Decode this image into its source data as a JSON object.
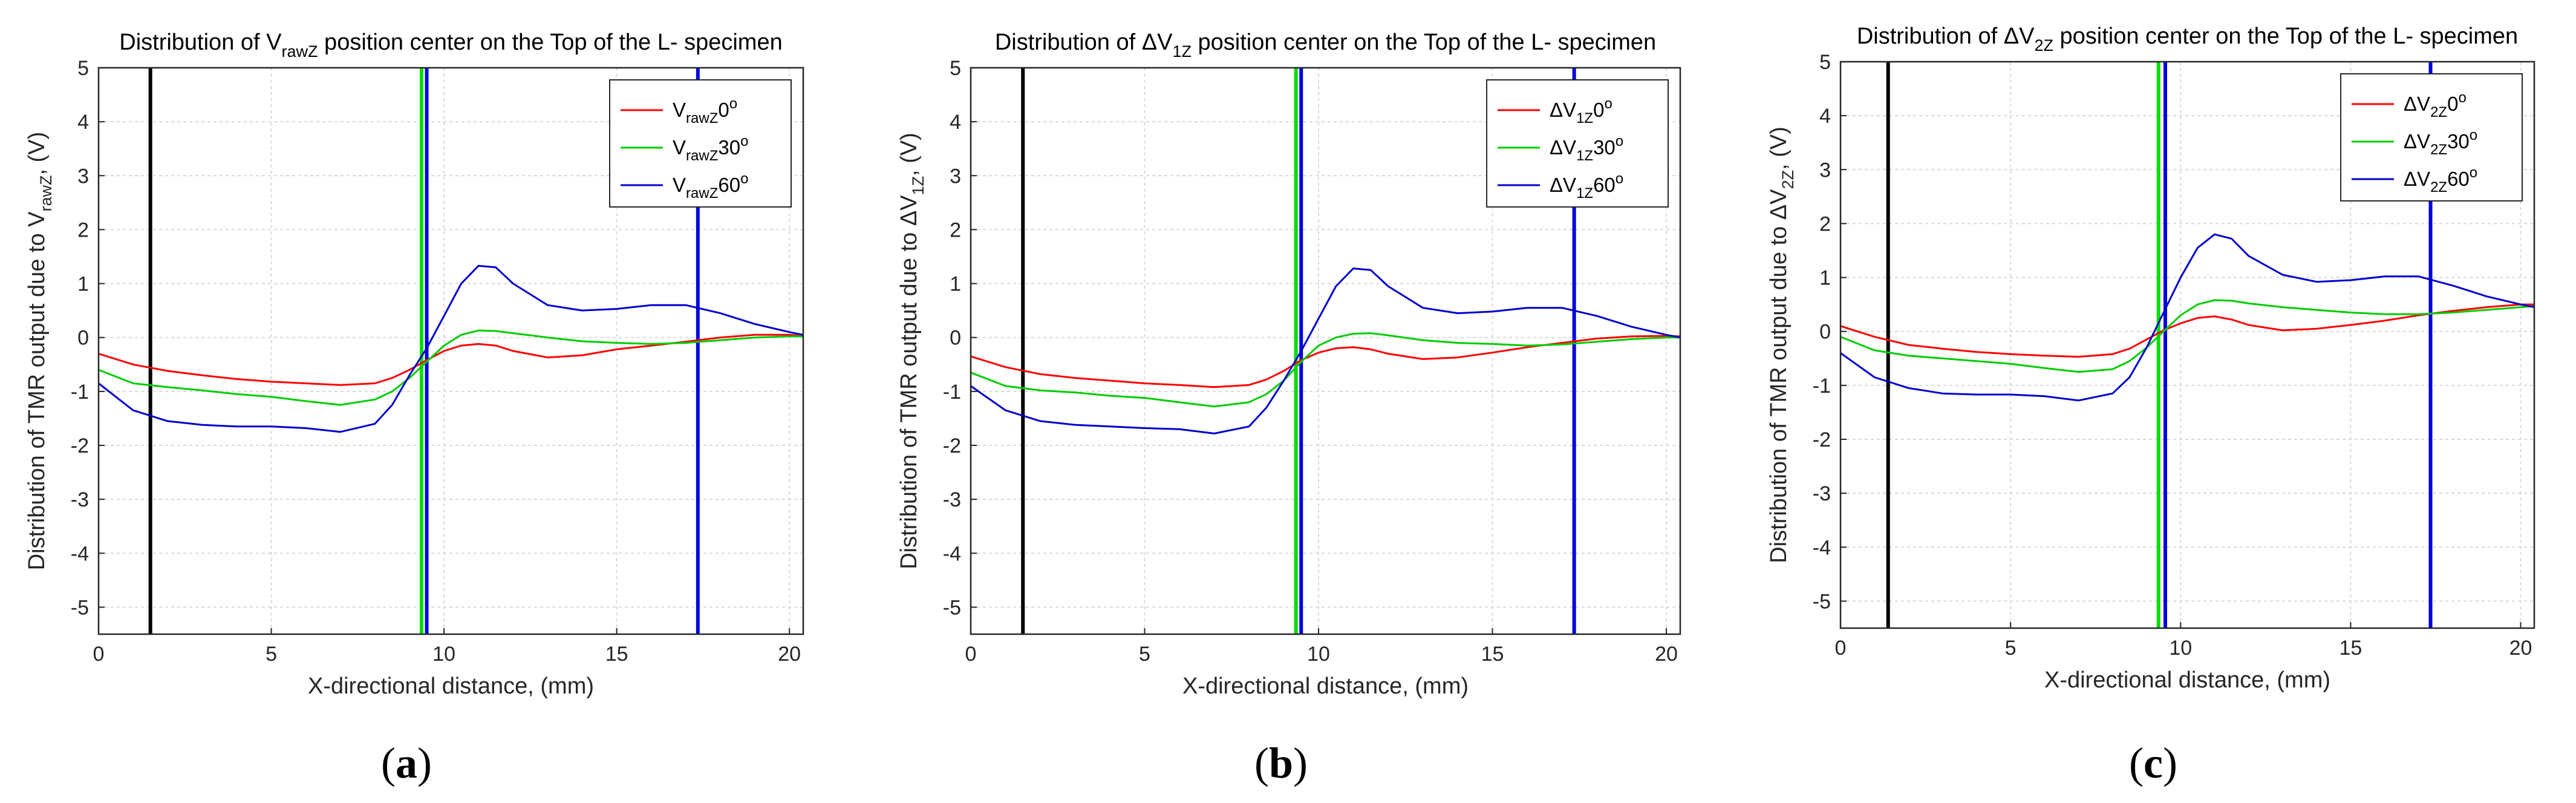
{
  "colors": {
    "series0": "#ff0000",
    "series30": "#00cc00",
    "series60": "#0000cc",
    "black_line": "#000000",
    "green_line": "#00dd00",
    "blue_line": "#0000dd",
    "grid": "#d9d9d9"
  },
  "panels": [
    {
      "title_pre": "Distribution of ",
      "title_sym": "V",
      "title_sub": "rawZ",
      "title_post": " position center on the Top of the L- specimen",
      "ylabel_pre": "Distribution of TMR output due to ",
      "ylabel_sym": "V",
      "ylabel_sub": "rawZ",
      "ylabel_post": ", (V)",
      "xlabel": "X-directional distance, (mm)",
      "caption_bold": "a",
      "legend": [
        {
          "sym": "V",
          "sub": "rawZ",
          "angle": "0",
          "sup": "o"
        },
        {
          "sym": "V",
          "sub": "rawZ",
          "angle": "30",
          "sup": "o"
        },
        {
          "sym": "V",
          "sub": "rawZ",
          "angle": "60",
          "sup": "o"
        }
      ]
    },
    {
      "title_pre": "Distribution of ",
      "title_sym": "ΔV",
      "title_sub": "1Z",
      "title_post": " position center on the Top of the L- specimen",
      "ylabel_pre": "Distribution of TMR output due to ",
      "ylabel_sym": "ΔV",
      "ylabel_sub": "1Z",
      "ylabel_post": ", (V)",
      "xlabel": "X-directional distance, (mm)",
      "caption_bold": "b",
      "legend": [
        {
          "sym": "ΔV",
          "sub": "1Z",
          "angle": "0",
          "sup": "o"
        },
        {
          "sym": "ΔV",
          "sub": "1Z",
          "angle": "30",
          "sup": "o"
        },
        {
          "sym": "ΔV",
          "sub": "1Z",
          "angle": "60",
          "sup": "o"
        }
      ]
    },
    {
      "title_pre": "Distribution of ",
      "title_sym": "ΔV",
      "title_sub": "2Z",
      "title_post": " position center on the Top of the L- specimen",
      "ylabel_pre": "Distribution of TMR output due to ",
      "ylabel_sym": "ΔV",
      "ylabel_sub": "2Z",
      "ylabel_post": ", (V)",
      "xlabel": "X-directional distance, (mm)",
      "caption_bold": "c",
      "legend": [
        {
          "sym": "ΔV",
          "sub": "2Z",
          "angle": "0",
          "sup": "o"
        },
        {
          "sym": "ΔV",
          "sub": "2Z",
          "angle": "30",
          "sup": "o"
        },
        {
          "sym": "ΔV",
          "sub": "2Z",
          "angle": "60",
          "sup": "o"
        }
      ]
    }
  ],
  "chart_data": [
    {
      "type": "line",
      "xlim": [
        0,
        20.4
      ],
      "ylim": [
        -5.5,
        5
      ],
      "xticks": [
        0,
        5,
        10,
        15,
        20
      ],
      "yticks": [
        5,
        4,
        3,
        2,
        1,
        0,
        -1,
        -2,
        -3,
        -4,
        -5
      ],
      "grid": true,
      "legend_position": "top-right",
      "vlines": [
        {
          "x": 1.5,
          "color": "black"
        },
        {
          "x": 9.35,
          "color": "green"
        },
        {
          "x": 9.5,
          "color": "blue"
        },
        {
          "x": 17.35,
          "color": "blue"
        }
      ],
      "x": [
        0,
        1,
        2,
        3,
        4,
        5,
        6,
        7,
        8,
        8.5,
        9,
        9.5,
        10,
        10.5,
        11,
        11.5,
        12,
        13,
        14,
        15,
        16,
        17,
        18,
        19,
        20,
        20.4
      ],
      "series": [
        {
          "name": "0°",
          "values": [
            -0.3,
            -0.5,
            -0.62,
            -0.7,
            -0.77,
            -0.82,
            -0.85,
            -0.88,
            -0.85,
            -0.75,
            -0.6,
            -0.42,
            -0.25,
            -0.15,
            -0.12,
            -0.15,
            -0.25,
            -0.37,
            -0.33,
            -0.22,
            -0.15,
            -0.08,
            0,
            0.05,
            0.05,
            0.03
          ]
        },
        {
          "name": "30°",
          "values": [
            -0.6,
            -0.85,
            -0.92,
            -0.98,
            -1.05,
            -1.1,
            -1.18,
            -1.25,
            -1.15,
            -1.0,
            -0.75,
            -0.45,
            -0.15,
            0.05,
            0.13,
            0.12,
            0.08,
            0.0,
            -0.07,
            -0.1,
            -0.12,
            -0.1,
            -0.05,
            0,
            0.02,
            0.02
          ]
        },
        {
          "name": "60°",
          "values": [
            -0.85,
            -1.35,
            -1.55,
            -1.62,
            -1.65,
            -1.65,
            -1.68,
            -1.75,
            -1.6,
            -1.25,
            -0.7,
            -0.2,
            0.4,
            1.0,
            1.33,
            1.3,
            1.0,
            0.6,
            0.5,
            0.53,
            0.6,
            0.6,
            0.45,
            0.25,
            0.1,
            0.05
          ]
        }
      ]
    },
    {
      "type": "line",
      "xlim": [
        0,
        20.4
      ],
      "ylim": [
        -5.5,
        5
      ],
      "xticks": [
        0,
        5,
        10,
        15,
        20
      ],
      "yticks": [
        5,
        4,
        3,
        2,
        1,
        0,
        -1,
        -2,
        -3,
        -4,
        -5
      ],
      "grid": true,
      "legend_position": "top-right",
      "vlines": [
        {
          "x": 1.5,
          "color": "black"
        },
        {
          "x": 9.35,
          "color": "green"
        },
        {
          "x": 9.5,
          "color": "blue"
        },
        {
          "x": 17.35,
          "color": "blue"
        }
      ],
      "x": [
        0,
        1,
        2,
        3,
        4,
        5,
        6,
        7,
        8,
        8.5,
        9,
        9.5,
        10,
        10.5,
        11,
        11.5,
        12,
        13,
        14,
        15,
        16,
        17,
        18,
        19,
        20,
        20.4
      ],
      "series": [
        {
          "name": "0°",
          "values": [
            -0.35,
            -0.55,
            -0.68,
            -0.75,
            -0.8,
            -0.85,
            -0.88,
            -0.92,
            -0.88,
            -0.78,
            -0.62,
            -0.42,
            -0.28,
            -0.2,
            -0.18,
            -0.22,
            -0.3,
            -0.4,
            -0.37,
            -0.28,
            -0.18,
            -0.1,
            -0.02,
            0.02,
            0.03,
            0.02
          ]
        },
        {
          "name": "30°",
          "values": [
            -0.65,
            -0.9,
            -0.98,
            -1.02,
            -1.08,
            -1.12,
            -1.2,
            -1.28,
            -1.2,
            -1.05,
            -0.8,
            -0.45,
            -0.15,
            0.0,
            0.07,
            0.08,
            0.04,
            -0.05,
            -0.1,
            -0.12,
            -0.15,
            -0.13,
            -0.08,
            -0.03,
            0,
            0.0
          ]
        },
        {
          "name": "60°",
          "values": [
            -0.9,
            -1.35,
            -1.55,
            -1.62,
            -1.65,
            -1.68,
            -1.7,
            -1.78,
            -1.65,
            -1.3,
            -0.8,
            -0.25,
            0.35,
            0.95,
            1.28,
            1.25,
            0.95,
            0.55,
            0.45,
            0.48,
            0.55,
            0.55,
            0.4,
            0.2,
            0.05,
            0.0
          ]
        }
      ]
    },
    {
      "type": "line",
      "xlim": [
        0,
        20.4
      ],
      "ylim": [
        -5.5,
        5
      ],
      "xticks": [
        0,
        5,
        10,
        15,
        20
      ],
      "yticks": [
        5,
        4,
        3,
        2,
        1,
        0,
        -1,
        -2,
        -3,
        -4,
        -5
      ],
      "grid": true,
      "legend_position": "top-right",
      "vlines": [
        {
          "x": 1.4,
          "color": "black"
        },
        {
          "x": 9.35,
          "color": "green"
        },
        {
          "x": 9.55,
          "color": "blue"
        },
        {
          "x": 17.35,
          "color": "blue"
        }
      ],
      "x": [
        0,
        1,
        2,
        3,
        4,
        5,
        6,
        7,
        8,
        8.5,
        9,
        9.5,
        10,
        10.5,
        11,
        11.5,
        12,
        13,
        14,
        15,
        16,
        17,
        18,
        19,
        20,
        20.4
      ],
      "series": [
        {
          "name": "0°",
          "values": [
            0.1,
            -0.1,
            -0.25,
            -0.32,
            -0.38,
            -0.42,
            -0.45,
            -0.47,
            -0.42,
            -0.32,
            -0.15,
            0.02,
            0.15,
            0.25,
            0.28,
            0.22,
            0.12,
            0.02,
            0.05,
            0.12,
            0.2,
            0.3,
            0.38,
            0.45,
            0.5,
            0.5
          ]
        },
        {
          "name": "30°",
          "values": [
            -0.1,
            -0.35,
            -0.45,
            -0.5,
            -0.55,
            -0.6,
            -0.68,
            -0.75,
            -0.7,
            -0.55,
            -0.3,
            0.0,
            0.3,
            0.5,
            0.58,
            0.57,
            0.52,
            0.45,
            0.4,
            0.35,
            0.32,
            0.32,
            0.35,
            0.4,
            0.45,
            0.47
          ]
        },
        {
          "name": "60°",
          "values": [
            -0.4,
            -0.85,
            -1.05,
            -1.15,
            -1.17,
            -1.17,
            -1.2,
            -1.28,
            -1.15,
            -0.85,
            -0.3,
            0.35,
            1.0,
            1.55,
            1.8,
            1.72,
            1.4,
            1.05,
            0.92,
            0.95,
            1.02,
            1.02,
            0.85,
            0.65,
            0.5,
            0.45
          ]
        }
      ]
    }
  ]
}
